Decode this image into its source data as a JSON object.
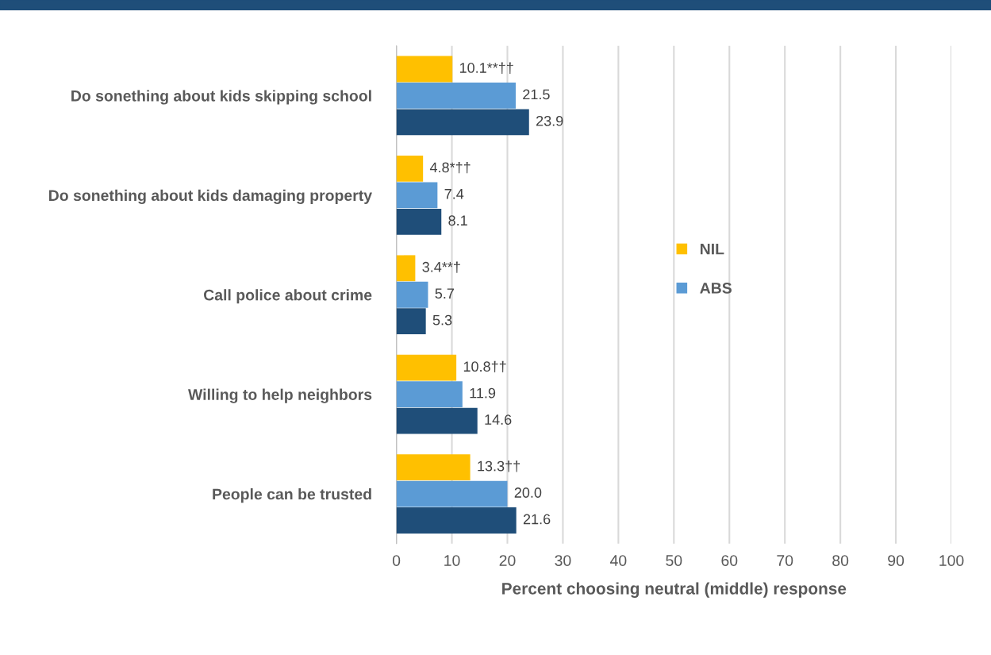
{
  "chart_data": {
    "type": "bar",
    "orientation": "horizontal",
    "xlabel": "Percent choosing neutral (middle) response",
    "categories": [
      "Do sonething about kids skipping school",
      "Do sonething about kids damaging property",
      "Call police about crime",
      "Willing to help neighbors",
      "People can be trusted"
    ],
    "series": [
      {
        "name": "NIL",
        "color": "#ffc000",
        "values": [
          10.1,
          4.8,
          3.4,
          10.8,
          13.3
        ],
        "value_labels": [
          "10.1**††",
          "4.8*††",
          "3.4**†",
          "10.8††",
          "13.3††"
        ]
      },
      {
        "name": "ABS",
        "color": "#5b9bd5",
        "values": [
          21.5,
          7.4,
          5.7,
          11.9,
          20.0
        ],
        "value_labels": [
          "21.5",
          "7.4",
          "5.7",
          "11.9",
          "20.0"
        ]
      },
      {
        "color": "#1f4e79",
        "values": [
          23.9,
          8.1,
          5.3,
          14.6,
          21.6
        ],
        "value_labels": [
          "23.9",
          "8.1",
          "5.3",
          "14.6",
          "21.6"
        ]
      }
    ],
    "xlim": [
      0,
      100
    ],
    "xticks": [
      0,
      10,
      20,
      30,
      40,
      50,
      60,
      70,
      80,
      90,
      100
    ],
    "grid": "x",
    "legend": "right"
  }
}
